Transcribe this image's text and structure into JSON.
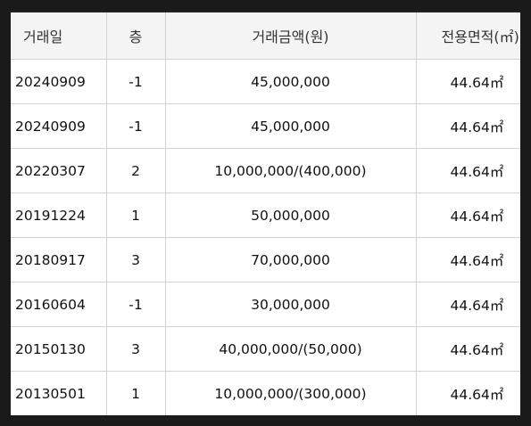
{
  "table": {
    "headers": {
      "date": "거래일",
      "floor": "층",
      "price": "거래금액(원)",
      "area": "전용면적(㎡)"
    },
    "rows": [
      {
        "date": "20240909",
        "floor": "-1",
        "price": "45,000,000",
        "area": "44.64㎡"
      },
      {
        "date": "20240909",
        "floor": "-1",
        "price": "45,000,000",
        "area": "44.64㎡"
      },
      {
        "date": "20220307",
        "floor": "2",
        "price": "10,000,000/(400,000)",
        "area": "44.64㎡"
      },
      {
        "date": "20191224",
        "floor": "1",
        "price": "50,000,000",
        "area": "44.64㎡"
      },
      {
        "date": "20180917",
        "floor": "3",
        "price": "70,000,000",
        "area": "44.64㎡"
      },
      {
        "date": "20160604",
        "floor": "-1",
        "price": "30,000,000",
        "area": "44.64㎡"
      },
      {
        "date": "20150130",
        "floor": "3",
        "price": "40,000,000/(50,000)",
        "area": "44.64㎡"
      },
      {
        "date": "20130501",
        "floor": "1",
        "price": "10,000,000/(300,000)",
        "area": "44.64㎡"
      }
    ]
  }
}
